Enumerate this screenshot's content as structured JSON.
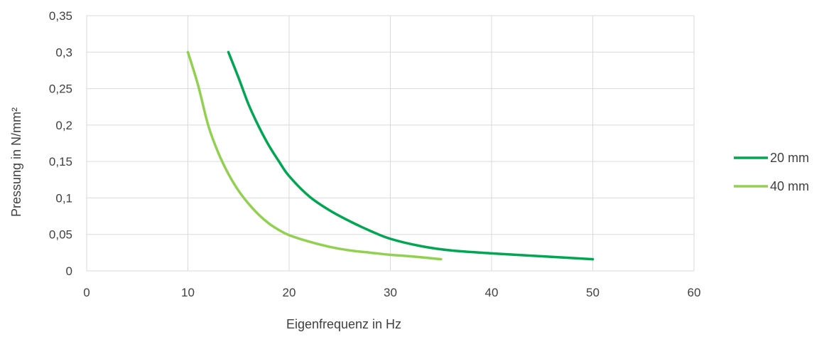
{
  "chart_data": {
    "type": "line",
    "xlabel": "Eigenfrequenz in Hz",
    "ylabel": "Pressung in N/mm²",
    "xlim": [
      0,
      60
    ],
    "ylim": [
      0,
      0.35
    ],
    "xticks": [
      0,
      10,
      20,
      30,
      40,
      50,
      60
    ],
    "xtick_labels": [
      "0",
      "10",
      "20",
      "30",
      "40",
      "50",
      "60"
    ],
    "yticks": [
      0,
      0.05,
      0.1,
      0.15,
      0.2,
      0.25,
      0.3,
      0.35
    ],
    "ytick_labels": [
      "0",
      "0,05",
      "0,1",
      "0,15",
      "0,2",
      "0,25",
      "0,3",
      "0,35"
    ],
    "grid": true,
    "legend_position": "right",
    "series": [
      {
        "name": "20 mm",
        "color": "#00a651",
        "x": [
          14,
          15,
          16,
          17,
          18,
          19,
          20,
          22,
          24,
          26,
          28,
          30,
          33,
          36,
          40,
          45,
          50
        ],
        "y": [
          0.3,
          0.265,
          0.228,
          0.198,
          0.172,
          0.15,
          0.13,
          0.102,
          0.083,
          0.068,
          0.055,
          0.044,
          0.034,
          0.028,
          0.024,
          0.02,
          0.016
        ]
      },
      {
        "name": "40 mm",
        "color": "#92d050",
        "x": [
          10,
          11,
          12,
          13,
          14,
          15,
          16,
          17,
          18,
          19,
          20,
          22,
          24,
          26,
          28,
          30,
          32,
          35
        ],
        "y": [
          0.3,
          0.255,
          0.2,
          0.162,
          0.133,
          0.11,
          0.092,
          0.077,
          0.065,
          0.056,
          0.049,
          0.04,
          0.033,
          0.028,
          0.025,
          0.022,
          0.02,
          0.016
        ]
      }
    ]
  }
}
